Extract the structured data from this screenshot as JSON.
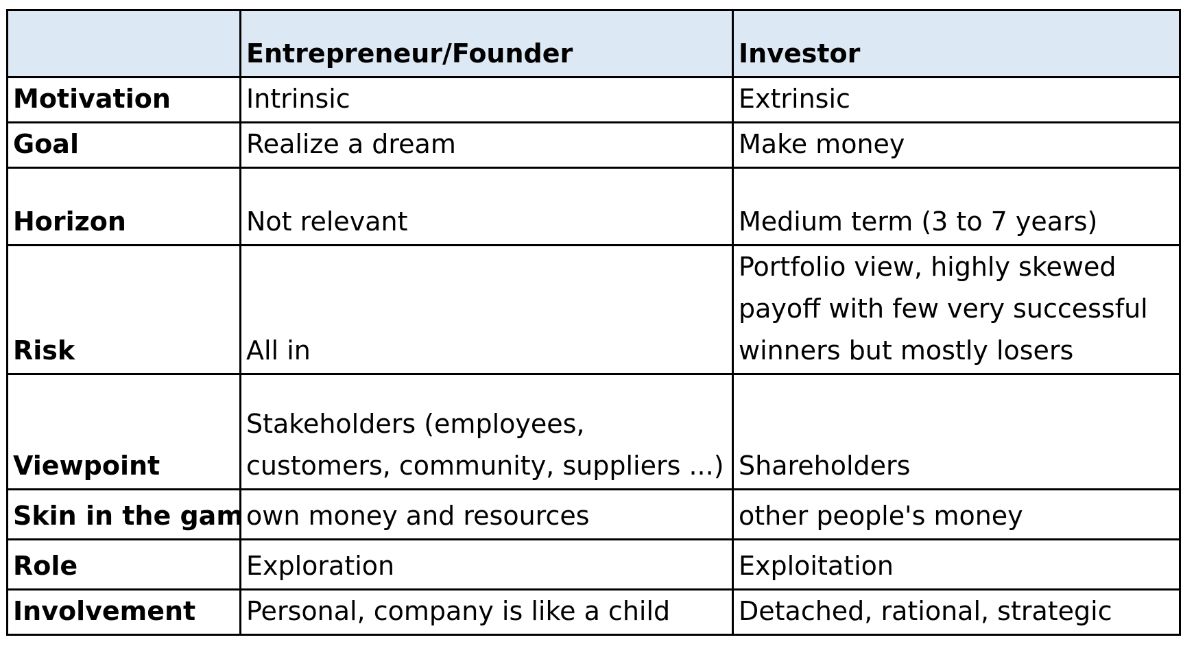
{
  "table": {
    "header": [
      "",
      "Entrepreneur/Founder",
      "Investor"
    ],
    "rows": [
      {
        "label": "Motivation",
        "founder": [
          "Intrinsic"
        ],
        "investor": [
          "Extrinsic"
        ]
      },
      {
        "label": "Goal",
        "founder": [
          "Realize a dream"
        ],
        "investor": [
          "Make money"
        ]
      },
      {
        "label": "Horizon",
        "founder": [
          "Not relevant"
        ],
        "investor": [
          "Medium term (3 to 7 years)"
        ]
      },
      {
        "label": "Risk",
        "founder": [
          "All in"
        ],
        "investor": [
          "Portfolio view, highly skewed",
          "payoff with few very successful",
          "winners but mostly losers"
        ]
      },
      {
        "label": "Viewpoint",
        "founder": [
          "Stakeholders (employees,",
          "customers, community, suppliers ...)"
        ],
        "investor": [
          "Shareholders"
        ]
      },
      {
        "label": "Skin in the game",
        "founder": [
          "own money and resources"
        ],
        "investor": [
          "other people's money"
        ]
      },
      {
        "label": "Role",
        "founder": [
          "Exploration"
        ],
        "investor": [
          "Exploitation"
        ]
      },
      {
        "label": "Involvement",
        "founder": [
          "Personal, company is like a child"
        ],
        "investor": [
          "Detached, rational, strategic"
        ]
      }
    ]
  }
}
